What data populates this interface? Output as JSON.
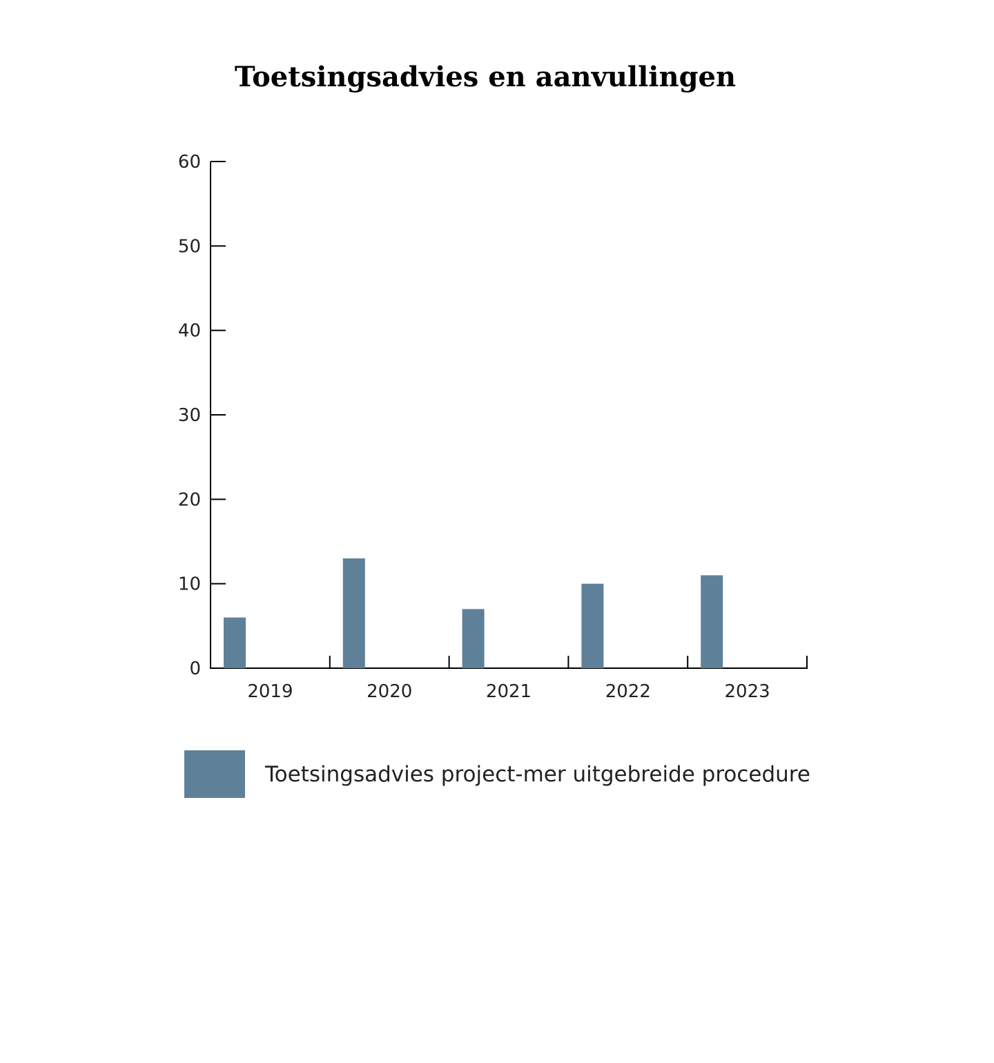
{
  "chart_data": {
    "type": "bar",
    "title": "Toetsingsadvies en aanvullingen",
    "xlabel": "",
    "ylabel": "",
    "categories": [
      "2019",
      "2020",
      "2021",
      "2022",
      "2023"
    ],
    "series": [
      {
        "name": "Toetsingsadvies project-mer uitgebreide procedure",
        "values": [
          6,
          13,
          7,
          10,
          11
        ],
        "color": "#5e8199"
      }
    ],
    "ylim": [
      0,
      60
    ],
    "yticks": [
      "0",
      "10",
      "20",
      "30",
      "40",
      "50",
      "60"
    ],
    "grid": false,
    "legend_position": "bottom-left"
  }
}
